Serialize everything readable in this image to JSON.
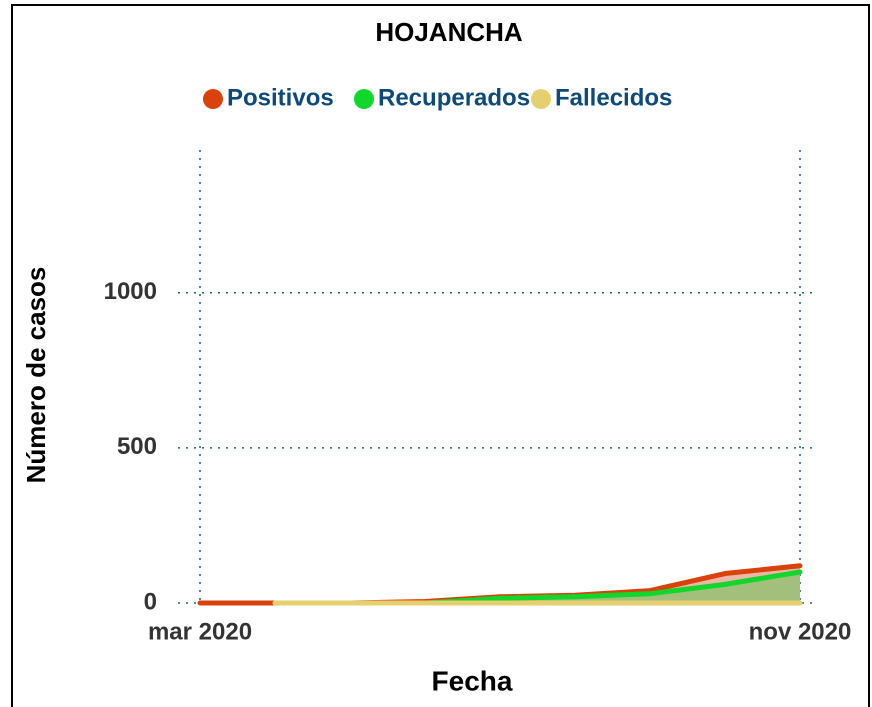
{
  "chart_data": {
    "type": "line",
    "title": "HOJANCHA",
    "x_label": "Fecha",
    "y_label": "Número de casos",
    "x": [
      "2020-03",
      "2020-04",
      "2020-05",
      "2020-06",
      "2020-07",
      "2020-08",
      "2020-09",
      "2020-10",
      "2020-11"
    ],
    "series": [
      {
        "name": "Positivos",
        "color": "#d9420b",
        "fill": "#e8a58e",
        "values": [
          0,
          0,
          0,
          5,
          20,
          25,
          40,
          95,
          120
        ]
      },
      {
        "name": "Recuperados",
        "color": "#11d62c",
        "fill": "#8fc070",
        "values": [
          null,
          0,
          0,
          0,
          15,
          20,
          30,
          60,
          100
        ]
      },
      {
        "name": "Fallecidos",
        "color": "#e6cf6e",
        "values": [
          null,
          0,
          0,
          0,
          0,
          0,
          0,
          0,
          0
        ]
      }
    ],
    "xlim": [
      "2020-03",
      "2020-11"
    ],
    "xticks": [
      {
        "value": "2020-03",
        "label": "mar 2020"
      },
      {
        "value": "2020-11",
        "label": "nov 2020"
      }
    ],
    "ylim": [
      0,
      1460
    ],
    "yticks": [
      0,
      500,
      1000
    ],
    "grid": true,
    "legend": "top"
  }
}
